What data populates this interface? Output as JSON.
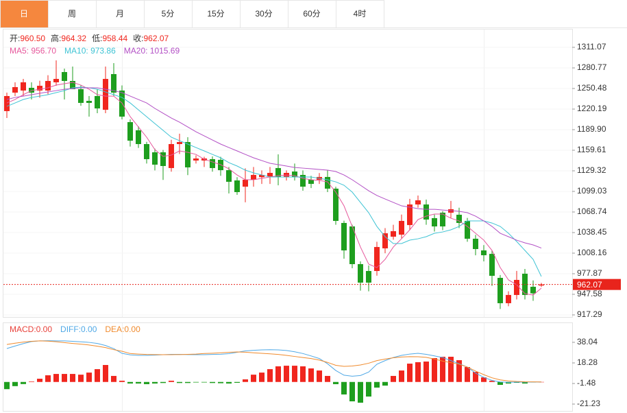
{
  "tabs": [
    "日",
    "周",
    "月",
    "5分",
    "15分",
    "30分",
    "60分",
    "4时"
  ],
  "active_tab": 0,
  "active_color": "#f5873e",
  "chart_data": [
    {
      "type": "candlestick",
      "header": [
        {
          "label": "开:",
          "value": "960.50"
        },
        {
          "label": "高:",
          "value": "964.32"
        },
        {
          "label": "低:",
          "value": "958.44"
        },
        {
          "label": "收:",
          "value": "962.07"
        }
      ],
      "up_color": "#f0261e",
      "down_color": "#1e9e1e",
      "open": [
        1217.2,
        1244.4,
        1247.5,
        1251.5,
        1247.5,
        1247.5,
        1259.6,
        1274.7,
        1261.6,
        1249.5,
        1232.3,
        1239.4,
        1219.2,
        1271.7,
        1247.5,
        1201,
        1189,
        1168.7,
        1156.6,
        1156.6,
        1133.4,
        1168.7,
        1171.7,
        1144.5,
        1144.5,
        1146.5,
        1145.5,
        1130.3,
        1115.2,
        1106,
        1116.2,
        1120,
        1121,
        1133.4,
        1120.3,
        1128.3,
        1123.3,
        1116.2,
        1116.2,
        1120.3,
        1103.1,
        1052.6,
        1047.5,
        992,
        981.9,
        981.9,
        1015.2,
        1032.4,
        1035.4,
        1049.5,
        1079.8,
        1079.8,
        1059.7,
        1067.7,
        1067.7,
        1064.7,
        1055.6,
        1029.4,
        1012.2,
        1007.1,
        971.8,
        934.5,
        946.6,
        977.9,
        958.7,
        960.5
      ],
      "high": [
        1244.4,
        1259.6,
        1264.6,
        1259.6,
        1262,
        1270,
        1291.9,
        1279.8,
        1282.8,
        1255,
        1239.4,
        1249.5,
        1282.8,
        1287.9,
        1255,
        1205,
        1195,
        1172,
        1162,
        1160,
        1175,
        1184,
        1178.8,
        1152,
        1150,
        1150.5,
        1150,
        1135,
        1120,
        1133,
        1135,
        1130,
        1135,
        1153.5,
        1130,
        1140,
        1130,
        1122,
        1126,
        1130,
        1106,
        1056,
        1050,
        996,
        990,
        1025,
        1045,
        1050,
        1065,
        1088,
        1093,
        1087,
        1065,
        1070,
        1085,
        1075,
        1060,
        1035,
        1020,
        1012,
        976,
        952,
        982,
        985,
        968,
        964.32
      ],
      "low": [
        1207.1,
        1239.4,
        1239.4,
        1234.3,
        1237,
        1242,
        1254.5,
        1234.3,
        1249.5,
        1225,
        1209.1,
        1214.1,
        1214.1,
        1239.4,
        1205,
        1165,
        1163,
        1140,
        1130,
        1116,
        1128,
        1154,
        1123,
        1140,
        1135,
        1128,
        1122,
        1096,
        1094,
        1083,
        1106,
        1110,
        1110,
        1108,
        1115,
        1115,
        1100,
        1104,
        1110,
        1098,
        1050,
        1000,
        986,
        953,
        952,
        975,
        1008,
        1028,
        1030,
        1042,
        1075,
        1050,
        1040,
        1042,
        1060,
        1045,
        1025,
        1005,
        996,
        960,
        926,
        930,
        940,
        940,
        938,
        958.44
      ],
      "close": [
        1239.4,
        1252.5,
        1259.6,
        1244.4,
        1254.5,
        1261.6,
        1264.6,
        1261.6,
        1249.5,
        1229.3,
        1229.3,
        1221.2,
        1264.6,
        1244.4,
        1209.1,
        1173.7,
        1168.7,
        1146.5,
        1138.4,
        1136.4,
        1168.7,
        1171.7,
        1134.4,
        1147.5,
        1147.5,
        1133.4,
        1130.3,
        1113.2,
        1098,
        1116.2,
        1123.3,
        1123.3,
        1126.3,
        1120.3,
        1126.3,
        1120.3,
        1106,
        1110.1,
        1120.3,
        1103.1,
        1055.6,
        1012.2,
        992,
        964.8,
        964.8,
        1017.2,
        1037.4,
        1040.5,
        1055.6,
        1079.8,
        1085.9,
        1057.6,
        1047.5,
        1047.5,
        1072.8,
        1052.6,
        1029.4,
        1014.2,
        1005.1,
        974.8,
        934.5,
        946.6,
        968.8,
        946.6,
        949,
        962.07
      ],
      "series": [
        {
          "name": "MA5: 956.70",
          "color": "#e6579b",
          "values": [
            1229.2,
            1234.3,
            1241.4,
            1247.4,
            1249.4,
            1251.5,
            1255.5,
            1257.5,
            1259.5,
            1255.5,
            1249.4,
            1241.4,
            1239.3,
            1239.3,
            1229.2,
            1209.1,
            1193.9,
            1178.8,
            1160.6,
            1150.5,
            1152.5,
            1158.6,
            1156.6,
            1153.5,
            1146.4,
            1142.4,
            1138.4,
            1132.3,
            1123.2,
            1116.2,
            1116.2,
            1118.2,
            1120.2,
            1122.2,
            1123.2,
            1122.2,
            1118.2,
            1116.2,
            1115.2,
            1113.1,
            1098.0,
            1077.8,
            1047.5,
            1017.2,
            992.0,
            986.9,
            999.0,
            1017.2,
            1029.4,
            1042.5,
            1057.6,
            1062.7,
            1065.7,
            1065.7,
            1059.6,
            1055.6,
            1047.5,
            1037.4,
            1027.3,
            1012.2,
            986.9,
            968.8,
            961.7,
            948.6,
            946.5,
            956.7
          ]
        },
        {
          "name": "MA10: 973.86",
          "color": "#3ec3d4",
          "values": [
            1224.2,
            1229.2,
            1234.3,
            1237.3,
            1239.3,
            1241.4,
            1244.4,
            1247.4,
            1251.5,
            1252.5,
            1251.5,
            1249.4,
            1245.4,
            1241.4,
            1237.3,
            1229.2,
            1219.1,
            1209.0,
            1198.9,
            1188.9,
            1178.8,
            1173.7,
            1168.7,
            1163.6,
            1158.6,
            1153.5,
            1148.5,
            1141.4,
            1136.4,
            1130.3,
            1126.3,
            1123.2,
            1120.2,
            1120.2,
            1120.2,
            1120.2,
            1120.2,
            1120.2,
            1118.2,
            1116.2,
            1113.1,
            1108.1,
            1098.0,
            1082.8,
            1067.7,
            1047.5,
            1032.4,
            1022.3,
            1022.3,
            1027.3,
            1029.3,
            1032.4,
            1037.4,
            1039.4,
            1042.5,
            1047.5,
            1055.6,
            1055.6,
            1055.6,
            1052.5,
            1047.5,
            1037.4,
            1025.3,
            1012.2,
            999.0,
            973.86
          ]
        },
        {
          "name": "MA20: 1015.69",
          "color": "#b24fc5",
          "values": [
            1234.3,
            1237.3,
            1239.3,
            1241.4,
            1243.4,
            1245.4,
            1247.4,
            1249.4,
            1250.5,
            1251.5,
            1251.5,
            1251.5,
            1249.4,
            1247.4,
            1244.4,
            1239.3,
            1234.3,
            1229.2,
            1221.2,
            1214.1,
            1207.0,
            1201.0,
            1193.9,
            1186.8,
            1180.8,
            1174.7,
            1168.7,
            1163.6,
            1158.6,
            1153.5,
            1148.5,
            1144.4,
            1140.4,
            1138.4,
            1136.4,
            1134.3,
            1133.3,
            1132.3,
            1131.3,
            1130.3,
            1128.3,
            1123.2,
            1116.2,
            1108.1,
            1100.0,
            1093.0,
            1087.9,
            1082.8,
            1077.8,
            1075.8,
            1073.7,
            1072.7,
            1072.7,
            1071.7,
            1070.7,
            1069.7,
            1067.7,
            1062.6,
            1055.6,
            1047.5,
            1037.4,
            1032.4,
            1027.3,
            1023.3,
            1020.3,
            1015.69
          ]
        }
      ],
      "ylim": [
        914.26,
        1338.33
      ],
      "yticks": [
        1311.07,
        1280.77,
        1250.48,
        1220.19,
        {
          "value": 1189.9,
          "label": "1189.90"
        },
        1159.61,
        1129.32,
        1099.03,
        1068.74,
        1038.45,
        1008.16,
        977.87,
        947.58,
        917.29
      ],
      "grid": true,
      "current_price": 962.07,
      "current_price_color": "#e8241c"
    },
    {
      "type": "macd",
      "up_color": "#f0261e",
      "down_color": "#1e9e1e",
      "series": [
        {
          "name": "MACD:0.00",
          "kind": "bar",
          "color": "#e8413a",
          "values": [
            -6.9,
            -4.0,
            -2.0,
            0.5,
            3.1,
            6.4,
            7.7,
            7.7,
            7.7,
            7.0,
            9.0,
            12.3,
            16.3,
            5.8,
            1.2,
            -1.5,
            -1.5,
            -2.1,
            -1.5,
            -1.0,
            1.2,
            -1.0,
            -1.0,
            -0.5,
            -0.5,
            -1.0,
            -1.2,
            -1.5,
            -0.8,
            2.5,
            7.0,
            9.0,
            12.3,
            15.0,
            15.6,
            15.6,
            15.0,
            13.0,
            11.0,
            5.8,
            -2.1,
            -12.0,
            -18.6,
            -19.9,
            -14.0,
            -5.4,
            -3.5,
            5.8,
            11.0,
            17.6,
            19.0,
            19.6,
            22.9,
            24.2,
            24.2,
            20.9,
            14.3,
            9.7,
            4.4,
            1.2,
            -2.8,
            -1.5,
            -0.8,
            -1.5,
            -0.2,
            0.0
          ]
        },
        {
          "name": "DIFF:0.00",
          "kind": "line",
          "color": "#4fa8e6",
          "values": [
            32.1,
            34.5,
            36.8,
            38.8,
            39.4,
            39.6,
            39.4,
            39.4,
            39.0,
            38.5,
            38.0,
            37.0,
            35.0,
            32.0,
            27.5,
            26.0,
            25.5,
            25.5,
            25.8,
            26.2,
            26.5,
            26.5,
            26.3,
            26.2,
            26.2,
            26.4,
            26.6,
            27.2,
            28.5,
            29.8,
            30.4,
            30.8,
            31.0,
            30.8,
            30.2,
            29.0,
            27.3,
            25.0,
            22.5,
            17.5,
            11.0,
            6.5,
            5.5,
            6.2,
            9.5,
            17.0,
            20.5,
            23.5,
            25.5,
            26.8,
            27.5,
            26.5,
            25.0,
            23.5,
            20.5,
            17.5,
            14.3,
            8.5,
            4.4,
            1.5,
            0.0,
            -0.3,
            -0.2,
            -0.2,
            -0.1,
            0.0
          ]
        },
        {
          "name": "DEA:0.00",
          "kind": "line",
          "color": "#f08a2c",
          "values": [
            36.0,
            37.2,
            38.3,
            39.0,
            39.4,
            39.2,
            38.6,
            37.8,
            37.0,
            36.3,
            35.5,
            34.3,
            33.0,
            31.0,
            29.5,
            27.3,
            26.8,
            26.4,
            26.3,
            26.2,
            26.2,
            26.3,
            26.5,
            26.8,
            27.3,
            27.6,
            28.0,
            28.5,
            28.8,
            28.6,
            28.0,
            27.5,
            27.0,
            26.4,
            25.5,
            24.5,
            23.5,
            22.5,
            21.0,
            18.8,
            16.0,
            15.0,
            15.3,
            16.3,
            18.0,
            20.5,
            22.0,
            23.2,
            24.0,
            24.3,
            24.2,
            23.6,
            22.0,
            20.0,
            18.5,
            17.0,
            14.3,
            10.5,
            7.0,
            4.0,
            2.0,
            1.0,
            0.5,
            0.2,
            0.1,
            0.0
          ]
        }
      ],
      "ylim": [
        -28.48,
        57.14
      ],
      "yticks": [
        38.04,
        18.28,
        -1.48,
        -21.23
      ]
    }
  ]
}
